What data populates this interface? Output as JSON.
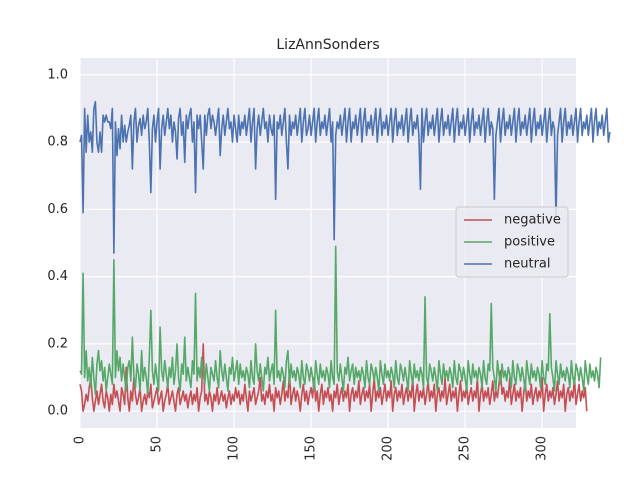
{
  "chart_data": {
    "type": "line",
    "title": "LizAnnSonders",
    "xlabel": "",
    "ylabel": "",
    "xlim": [
      0,
      322
    ],
    "ylim": [
      -0.05,
      1.05
    ],
    "xticks": [
      0,
      50,
      100,
      150,
      200,
      250,
      300
    ],
    "xtick_labels": [
      "0",
      "50",
      "100",
      "150",
      "200",
      "250",
      "300"
    ],
    "xtick_rotation": 90,
    "yticks": [
      0.0,
      0.2,
      0.4,
      0.6,
      0.8,
      1.0
    ],
    "ytick_labels": [
      "0.0",
      "0.2",
      "0.4",
      "0.6",
      "0.8",
      "1.0"
    ],
    "grid": true,
    "legend_position": "center-right",
    "background_color": "#eaeaf2",
    "grid_color": "#ffffff",
    "series": [
      {
        "name": "negative",
        "color": "#c44e52",
        "values": [
          0.08,
          0.06,
          0.0,
          0.02,
          0.05,
          0.03,
          0.07,
          0.1,
          0.04,
          0.0,
          0.03,
          0.06,
          0.02,
          0.05,
          0.08,
          0.03,
          0.01,
          0.06,
          0.04,
          0.0,
          0.05,
          0.02,
          0.08,
          0.04,
          0.06,
          0.03,
          0.0,
          0.07,
          0.05,
          0.02,
          0.13,
          0.04,
          0.0,
          0.06,
          0.03,
          0.1,
          0.05,
          0.02,
          0.04,
          0.07,
          0.0,
          0.03,
          0.05,
          0.02,
          0.06,
          0.04,
          0.08,
          0.01,
          0.03,
          0.05,
          0.07,
          0.02,
          0.04,
          0.06,
          0.0,
          0.03,
          0.05,
          0.08,
          0.02,
          0.04,
          0.06,
          0.03,
          0.0,
          0.05,
          0.07,
          0.02,
          0.04,
          0.06,
          0.03,
          0.05,
          0.01,
          0.04,
          0.06,
          0.02,
          0.05,
          0.03,
          0.07,
          0.0,
          0.04,
          0.06,
          0.2,
          0.03,
          0.05,
          0.02,
          0.06,
          0.04,
          0.0,
          0.05,
          0.03,
          0.07,
          0.02,
          0.04,
          0.06,
          0.03,
          0.05,
          0.01,
          0.04,
          0.06,
          0.02,
          0.05,
          0.03,
          0.07,
          0.04,
          0.06,
          0.02,
          0.05,
          0.03,
          0.08,
          0.04,
          0.0,
          0.06,
          0.03,
          0.05,
          0.07,
          0.02,
          0.04,
          0.06,
          0.1,
          0.03,
          0.05,
          0.02,
          0.06,
          0.04,
          0.08,
          0.03,
          0.05,
          0.0,
          0.07,
          0.04,
          0.06,
          0.02,
          0.05,
          0.09,
          0.03,
          0.06,
          0.04,
          0.12,
          0.02,
          0.05,
          0.07,
          0.03,
          0.06,
          0.04,
          0.0,
          0.05,
          0.08,
          0.03,
          0.06,
          0.02,
          0.05,
          0.07,
          0.04,
          0.1,
          0.03,
          0.06,
          0.0,
          0.05,
          0.08,
          0.02,
          0.06,
          0.04,
          0.07,
          0.03,
          0.05,
          0.0,
          0.06,
          0.04,
          0.08,
          0.02,
          0.05,
          0.07,
          0.03,
          0.06,
          0.04,
          0.08,
          0.0,
          0.05,
          0.07,
          0.03,
          0.06,
          0.04,
          0.09,
          0.02,
          0.05,
          0.07,
          0.03,
          0.06,
          0.04,
          0.08,
          0.0,
          0.05,
          0.1,
          0.03,
          0.06,
          0.04,
          0.07,
          0.02,
          0.05,
          0.08,
          0.03,
          0.06,
          0.04,
          0.09,
          0.0,
          0.05,
          0.07,
          0.03,
          0.06,
          0.04,
          0.08,
          0.02,
          0.05,
          0.07,
          0.03,
          0.06,
          0.04,
          0.1,
          0.0,
          0.05,
          0.08,
          0.03,
          0.06,
          0.04,
          0.07,
          0.02,
          0.05,
          0.09,
          0.03,
          0.06,
          0.04,
          0.08,
          0.0,
          0.05,
          0.07,
          0.03,
          0.06,
          0.04,
          0.1,
          0.02,
          0.05,
          0.08,
          0.03,
          0.06,
          0.04,
          0.07,
          0.0,
          0.05,
          0.09,
          0.03,
          0.06,
          0.04,
          0.08,
          0.02,
          0.05,
          0.07,
          0.03,
          0.06,
          0.04,
          0.1,
          0.0,
          0.05,
          0.08,
          0.03,
          0.06,
          0.04,
          0.07,
          0.02,
          0.05,
          0.09,
          0.03,
          0.06,
          0.04,
          0.08,
          0.12,
          0.05,
          0.07,
          0.03,
          0.06,
          0.04,
          0.1,
          0.02,
          0.05,
          0.08,
          0.03,
          0.06,
          0.04,
          0.07,
          0.0,
          0.05,
          0.09,
          0.03,
          0.06,
          0.04,
          0.08,
          0.02,
          0.05,
          0.07,
          0.03,
          0.06,
          0.04,
          0.1,
          0.0,
          0.05,
          0.08,
          0.03,
          0.06,
          0.04,
          0.07,
          0.02,
          0.05,
          0.09,
          0.03,
          0.06,
          0.04,
          0.08,
          0.0,
          0.05,
          0.07,
          0.03,
          0.06,
          0.04,
          0.1,
          0.02,
          0.05,
          0.08,
          0.03,
          0.06,
          0.04,
          0.07,
          0.0
        ]
      },
      {
        "name": "positive",
        "color": "#55a868",
        "values": [
          0.12,
          0.11,
          0.41,
          0.1,
          0.18,
          0.09,
          0.13,
          0.07,
          0.16,
          0.1,
          0.05,
          0.14,
          0.18,
          0.12,
          0.15,
          0.09,
          0.13,
          0.06,
          0.1,
          0.14,
          0.11,
          0.08,
          0.45,
          0.1,
          0.18,
          0.12,
          0.16,
          0.09,
          0.14,
          0.1,
          0.06,
          0.13,
          0.15,
          0.09,
          0.22,
          0.1,
          0.07,
          0.14,
          0.11,
          0.06,
          0.18,
          0.09,
          0.13,
          0.1,
          0.05,
          0.16,
          0.3,
          0.12,
          0.08,
          0.14,
          0.1,
          0.06,
          0.25,
          0.12,
          0.09,
          0.15,
          0.11,
          0.07,
          0.13,
          0.1,
          0.16,
          0.08,
          0.12,
          0.2,
          0.1,
          0.06,
          0.14,
          0.11,
          0.22,
          0.09,
          0.13,
          0.1,
          0.07,
          0.15,
          0.11,
          0.35,
          0.09,
          0.13,
          0.1,
          0.16,
          0.12,
          0.08,
          0.14,
          0.1,
          0.06,
          0.13,
          0.11,
          0.09,
          0.15,
          0.1,
          0.07,
          0.18,
          0.12,
          0.09,
          0.14,
          0.1,
          0.06,
          0.13,
          0.11,
          0.16,
          0.09,
          0.12,
          0.15,
          0.08,
          0.14,
          0.1,
          0.12,
          0.09,
          0.13,
          0.11,
          0.07,
          0.15,
          0.1,
          0.08,
          0.2,
          0.12,
          0.09,
          0.14,
          0.1,
          0.06,
          0.13,
          0.11,
          0.16,
          0.09,
          0.12,
          0.14,
          0.08,
          0.3,
          0.1,
          0.12,
          0.09,
          0.13,
          0.11,
          0.07,
          0.15,
          0.18,
          0.08,
          0.14,
          0.1,
          0.12,
          0.09,
          0.13,
          0.11,
          0.07,
          0.15,
          0.1,
          0.08,
          0.14,
          0.12,
          0.09,
          0.13,
          0.1,
          0.06,
          0.15,
          0.11,
          0.08,
          0.14,
          0.1,
          0.12,
          0.09,
          0.13,
          0.11,
          0.07,
          0.15,
          0.1,
          0.08,
          0.49,
          0.12,
          0.09,
          0.14,
          0.1,
          0.06,
          0.13,
          0.11,
          0.16,
          0.09,
          0.12,
          0.14,
          0.08,
          0.13,
          0.1,
          0.12,
          0.09,
          0.13,
          0.11,
          0.07,
          0.15,
          0.1,
          0.08,
          0.14,
          0.12,
          0.09,
          0.13,
          0.1,
          0.06,
          0.15,
          0.11,
          0.08,
          0.14,
          0.1,
          0.12,
          0.09,
          0.13,
          0.11,
          0.07,
          0.15,
          0.1,
          0.08,
          0.14,
          0.12,
          0.09,
          0.13,
          0.1,
          0.06,
          0.15,
          0.11,
          0.08,
          0.14,
          0.1,
          0.12,
          0.09,
          0.13,
          0.11,
          0.07,
          0.34,
          0.1,
          0.08,
          0.14,
          0.12,
          0.09,
          0.13,
          0.1,
          0.06,
          0.15,
          0.11,
          0.08,
          0.14,
          0.1,
          0.12,
          0.09,
          0.13,
          0.11,
          0.07,
          0.15,
          0.1,
          0.08,
          0.14,
          0.12,
          0.09,
          0.13,
          0.1,
          0.06,
          0.15,
          0.11,
          0.08,
          0.14,
          0.1,
          0.12,
          0.09,
          0.13,
          0.11,
          0.07,
          0.15,
          0.1,
          0.08,
          0.14,
          0.12,
          0.32,
          0.13,
          0.1,
          0.06,
          0.15,
          0.11,
          0.08,
          0.14,
          0.1,
          0.12,
          0.09,
          0.13,
          0.11,
          0.07,
          0.15,
          0.1,
          0.08,
          0.14,
          0.12,
          0.09,
          0.13,
          0.1,
          0.06,
          0.15,
          0.11,
          0.08,
          0.14,
          0.1,
          0.12,
          0.09,
          0.13,
          0.11,
          0.07,
          0.15,
          0.1,
          0.08,
          0.14,
          0.12,
          0.29,
          0.13,
          0.1,
          0.06,
          0.15,
          0.11,
          0.08,
          0.14,
          0.1,
          0.12,
          0.09,
          0.13,
          0.11,
          0.07,
          0.15,
          0.1,
          0.08,
          0.14,
          0.12,
          0.09,
          0.13,
          0.1,
          0.06,
          0.15,
          0.11,
          0.08,
          0.14,
          0.1,
          0.12,
          0.09,
          0.13,
          0.11,
          0.07,
          0.16
        ]
      },
      {
        "name": "neutral",
        "color": "#4c72b0",
        "values": [
          0.8,
          0.82,
          0.59,
          0.9,
          0.77,
          0.88,
          0.8,
          0.83,
          0.77,
          0.9,
          0.92,
          0.8,
          0.77,
          0.83,
          0.77,
          0.88,
          0.86,
          0.88,
          0.86,
          0.86,
          0.84,
          0.9,
          0.47,
          0.86,
          0.76,
          0.84,
          0.78,
          0.88,
          0.8,
          0.85,
          0.8,
          0.83,
          0.85,
          0.88,
          0.72,
          0.86,
          0.9,
          0.8,
          0.85,
          0.87,
          0.82,
          0.88,
          0.84,
          0.86,
          0.9,
          0.8,
          0.65,
          0.84,
          0.88,
          0.8,
          0.86,
          0.9,
          0.72,
          0.84,
          0.88,
          0.82,
          0.86,
          0.9,
          0.84,
          0.88,
          0.8,
          0.86,
          0.83,
          0.75,
          0.87,
          0.9,
          0.82,
          0.86,
          0.74,
          0.88,
          0.84,
          0.88,
          0.9,
          0.8,
          0.86,
          0.65,
          0.88,
          0.84,
          0.88,
          0.8,
          0.72,
          0.88,
          0.82,
          0.88,
          0.9,
          0.84,
          0.88,
          0.86,
          0.82,
          0.86,
          0.9,
          0.76,
          0.84,
          0.88,
          0.82,
          0.86,
          0.9,
          0.84,
          0.86,
          0.8,
          0.88,
          0.84,
          0.8,
          0.88,
          0.82,
          0.86,
          0.84,
          0.88,
          0.82,
          0.86,
          0.9,
          0.8,
          0.86,
          0.9,
          0.72,
          0.84,
          0.88,
          0.82,
          0.86,
          0.9,
          0.84,
          0.86,
          0.8,
          0.88,
          0.84,
          0.82,
          0.88,
          0.63,
          0.86,
          0.84,
          0.88,
          0.82,
          0.86,
          0.9,
          0.8,
          0.72,
          0.88,
          0.82,
          0.86,
          0.84,
          0.88,
          0.82,
          0.86,
          0.9,
          0.8,
          0.86,
          0.9,
          0.82,
          0.84,
          0.88,
          0.82,
          0.86,
          0.9,
          0.8,
          0.86,
          0.9,
          0.82,
          0.86,
          0.84,
          0.88,
          0.82,
          0.86,
          0.9,
          0.8,
          0.86,
          0.51,
          0.82,
          0.86,
          0.84,
          0.88,
          0.82,
          0.86,
          0.9,
          0.8,
          0.86,
          0.9,
          0.8,
          0.86,
          0.84,
          0.88,
          0.82,
          0.86,
          0.9,
          0.8,
          0.86,
          0.9,
          0.82,
          0.86,
          0.84,
          0.88,
          0.82,
          0.86,
          0.9,
          0.8,
          0.86,
          0.9,
          0.82,
          0.86,
          0.84,
          0.88,
          0.82,
          0.86,
          0.9,
          0.8,
          0.86,
          0.9,
          0.82,
          0.86,
          0.84,
          0.88,
          0.82,
          0.86,
          0.9,
          0.8,
          0.86,
          0.9,
          0.82,
          0.86,
          0.84,
          0.88,
          0.82,
          0.66,
          0.9,
          0.8,
          0.86,
          0.9,
          0.82,
          0.86,
          0.84,
          0.88,
          0.82,
          0.86,
          0.9,
          0.8,
          0.86,
          0.9,
          0.82,
          0.86,
          0.84,
          0.88,
          0.82,
          0.86,
          0.9,
          0.8,
          0.86,
          0.9,
          0.82,
          0.86,
          0.84,
          0.88,
          0.82,
          0.86,
          0.9,
          0.8,
          0.86,
          0.9,
          0.82,
          0.86,
          0.84,
          0.88,
          0.82,
          0.86,
          0.9,
          0.8,
          0.86,
          0.9,
          0.82,
          0.86,
          0.84,
          0.63,
          0.82,
          0.86,
          0.9,
          0.8,
          0.86,
          0.9,
          0.82,
          0.86,
          0.84,
          0.88,
          0.82,
          0.86,
          0.9,
          0.8,
          0.86,
          0.9,
          0.82,
          0.86,
          0.84,
          0.88,
          0.82,
          0.86,
          0.9,
          0.8,
          0.86,
          0.9,
          0.82,
          0.86,
          0.84,
          0.88,
          0.82,
          0.86,
          0.9,
          0.8,
          0.86,
          0.9,
          0.82,
          0.86,
          0.84,
          0.57,
          0.82,
          0.86,
          0.9,
          0.8,
          0.86,
          0.9,
          0.82,
          0.86,
          0.84,
          0.88,
          0.82,
          0.86,
          0.9,
          0.8,
          0.86,
          0.9,
          0.82,
          0.86,
          0.84,
          0.88,
          0.82,
          0.86,
          0.9,
          0.8,
          0.86,
          0.9,
          0.82,
          0.86,
          0.84,
          0.88,
          0.82,
          0.86,
          0.9,
          0.8,
          0.83
        ]
      }
    ]
  }
}
